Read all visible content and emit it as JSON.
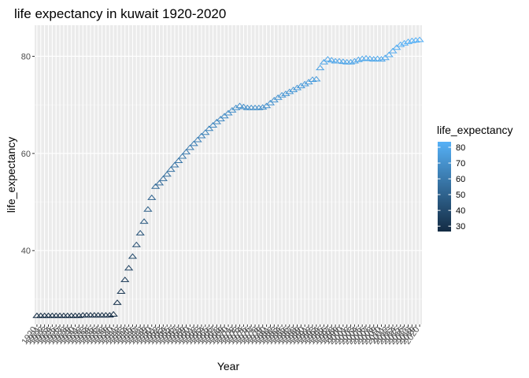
{
  "chart_data": {
    "type": "scatter",
    "title": "life expectancy in kuwait 1920-2020",
    "xlabel": "Year",
    "ylabel": "life_expectancy",
    "marker": "open-triangle",
    "x_start": 1920,
    "x_end": 2020,
    "ylim": [
      24.8,
      86.4
    ],
    "y_ticks": [
      40,
      60,
      80
    ],
    "grid": true,
    "legend": {
      "title": "life_expectancy",
      "position": "right",
      "ticks": [
        30,
        40,
        50,
        60,
        70,
        80
      ],
      "range": [
        26.6,
        83.5
      ],
      "color_low": "#132B43",
      "color_high": "#56B1F7"
    },
    "values": [
      26.6,
      26.6,
      26.6,
      26.6,
      26.6,
      26.6,
      26.6,
      26.6,
      26.6,
      26.6,
      26.6,
      26.6,
      26.7,
      26.7,
      26.7,
      26.7,
      26.7,
      26.7,
      26.7,
      26.7,
      26.9,
      29.3,
      31.6,
      34.0,
      36.4,
      38.8,
      41.2,
      43.6,
      46.0,
      48.5,
      50.9,
      53.2,
      53.9,
      54.8,
      55.7,
      56.7,
      57.6,
      58.5,
      59.4,
      60.3,
      61.2,
      62.0,
      62.8,
      63.6,
      64.3,
      65.1,
      65.8,
      66.5,
      67.1,
      67.7,
      68.3,
      68.9,
      69.4,
      69.8,
      69.6,
      69.4,
      69.4,
      69.4,
      69.4,
      69.5,
      69.8,
      70.4,
      71.0,
      71.5,
      72.0,
      72.3,
      72.7,
      73.1,
      73.5,
      73.9,
      74.3,
      74.7,
      75.2,
      75.3,
      77.6,
      78.8,
      79.4,
      79.2,
      79.0,
      79.0,
      78.9,
      78.8,
      78.8,
      79.0,
      79.3,
      79.5,
      79.6,
      79.5,
      79.4,
      79.5,
      79.4,
      79.7,
      80.3,
      81.1,
      81.8,
      82.4,
      82.7,
      83.0,
      83.2,
      83.3,
      83.4
    ]
  }
}
